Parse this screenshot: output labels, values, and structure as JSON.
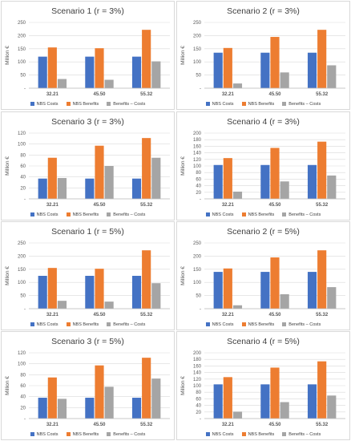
{
  "colors": {
    "costs": "#4472c4",
    "benefits": "#ed7d31",
    "net": "#a5a5a5",
    "gridline": "#d9d9d9",
    "text": "#595959",
    "border": "#d9d9d9"
  },
  "legend_labels": [
    "NBS Costs",
    "NBS Benefits",
    "Benefits – Costs"
  ],
  "chart_data": [
    {
      "type": "bar",
      "title": "Scenario 1 (r = 3%)",
      "ylabel": "Million €",
      "categories": [
        "32.21",
        "45.50",
        "55.32"
      ],
      "ylim": [
        0,
        250
      ],
      "yticks": [
        "-",
        "50",
        "100",
        "150",
        "200",
        "250"
      ],
      "grid": true,
      "legend": "bottom",
      "series": [
        {
          "name": "NBS Costs",
          "values": [
            120,
            120,
            120
          ]
        },
        {
          "name": "NBS Benefits",
          "values": [
            155,
            152,
            222
          ]
        },
        {
          "name": "Benefits – Costs",
          "values": [
            35,
            32,
            102
          ]
        }
      ]
    },
    {
      "type": "bar",
      "title": "Scenario 2 (r = 3%)",
      "ylabel": "Million €",
      "categories": [
        "32.21",
        "45.50",
        "55.32"
      ],
      "ylim": [
        0,
        250
      ],
      "yticks": [
        "-",
        "50",
        "100",
        "150",
        "200",
        "250"
      ],
      "grid": true,
      "legend": "bottom",
      "series": [
        {
          "name": "NBS Costs",
          "values": [
            135,
            135,
            135
          ]
        },
        {
          "name": "NBS Benefits",
          "values": [
            153,
            195,
            222
          ]
        },
        {
          "name": "Benefits – Costs",
          "values": [
            18,
            60,
            87
          ]
        }
      ]
    },
    {
      "type": "bar",
      "title": "Scenario 3 (r = 3%)",
      "ylabel": "Million €",
      "categories": [
        "32.21",
        "45.50",
        "55.32"
      ],
      "ylim": [
        0,
        120
      ],
      "yticks": [
        "-",
        "20",
        "40",
        "60",
        "80",
        "100",
        "120"
      ],
      "grid": true,
      "legend": "bottom",
      "series": [
        {
          "name": "NBS Costs",
          "values": [
            37,
            37,
            37
          ]
        },
        {
          "name": "NBS Benefits",
          "values": [
            75,
            97,
            111
          ]
        },
        {
          "name": "Benefits – Costs",
          "values": [
            38,
            60,
            75
          ]
        }
      ]
    },
    {
      "type": "bar",
      "title": "Scenario 4 (r = 3%)",
      "ylabel": "Million €",
      "categories": [
        "32.21",
        "45.50",
        "55.32"
      ],
      "ylim": [
        0,
        200
      ],
      "yticks": [
        "-",
        "20",
        "40",
        "60",
        "80",
        "100",
        "120",
        "140",
        "160",
        "180",
        "200"
      ],
      "grid": true,
      "legend": "bottom",
      "series": [
        {
          "name": "NBS Costs",
          "values": [
            103,
            103,
            103
          ]
        },
        {
          "name": "NBS Benefits",
          "values": [
            124,
            155,
            174
          ]
        },
        {
          "name": "Benefits – Costs",
          "values": [
            22,
            53,
            71
          ]
        }
      ]
    },
    {
      "type": "bar",
      "title": "Scenario 1 (r = 5%)",
      "ylabel": "Million €",
      "categories": [
        "32.21",
        "45.50",
        "55.32"
      ],
      "ylim": [
        0,
        250
      ],
      "yticks": [
        "-",
        "50",
        "100",
        "150",
        "200",
        "250"
      ],
      "grid": true,
      "legend": "bottom",
      "series": [
        {
          "name": "NBS Costs",
          "values": [
            125,
            125,
            125
          ]
        },
        {
          "name": "NBS Benefits",
          "values": [
            155,
            152,
            222
          ]
        },
        {
          "name": "Benefits – Costs",
          "values": [
            30,
            27,
            97
          ]
        }
      ]
    },
    {
      "type": "bar",
      "title": "Scenario 2 (r = 5%)",
      "ylabel": "Million €",
      "categories": [
        "32.21",
        "45.50",
        "55.32"
      ],
      "ylim": [
        0,
        250
      ],
      "yticks": [
        "-",
        "50",
        "100",
        "150",
        "200",
        "250"
      ],
      "grid": true,
      "legend": "bottom",
      "series": [
        {
          "name": "NBS Costs",
          "values": [
            140,
            140,
            140
          ]
        },
        {
          "name": "NBS Benefits",
          "values": [
            153,
            195,
            222
          ]
        },
        {
          "name": "Benefits – Costs",
          "values": [
            13,
            55,
            82
          ]
        }
      ]
    },
    {
      "type": "bar",
      "title": "Scenario 3 (r = 5%)",
      "ylabel": "Million €",
      "categories": [
        "32.21",
        "45.50",
        "55.32"
      ],
      "ylim": [
        0,
        120
      ],
      "yticks": [
        "-",
        "20",
        "40",
        "60",
        "80",
        "100",
        "120"
      ],
      "grid": true,
      "legend": "bottom",
      "series": [
        {
          "name": "NBS Costs",
          "values": [
            38,
            38,
            38
          ]
        },
        {
          "name": "NBS Benefits",
          "values": [
            75,
            97,
            111
          ]
        },
        {
          "name": "Benefits – Costs",
          "values": [
            36,
            58,
            73
          ]
        }
      ]
    },
    {
      "type": "bar",
      "title": "Scenario 4 (r = 5%)",
      "ylabel": "Million €",
      "categories": [
        "32.21",
        "45.50",
        "55.32"
      ],
      "ylim": [
        0,
        200
      ],
      "yticks": [
        "-",
        "20",
        "40",
        "60",
        "80",
        "100",
        "120",
        "140",
        "160",
        "180",
        "200"
      ],
      "grid": true,
      "legend": "bottom",
      "series": [
        {
          "name": "NBS Costs",
          "values": [
            104,
            104,
            104
          ]
        },
        {
          "name": "NBS Benefits",
          "values": [
            126,
            155,
            174
          ]
        },
        {
          "name": "Benefits – Costs",
          "values": [
            21,
            50,
            70
          ]
        }
      ]
    }
  ]
}
